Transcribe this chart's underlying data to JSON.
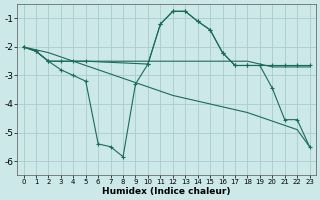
{
  "xlabel": "Humidex (Indice chaleur)",
  "background_color": "#cce8e8",
  "grid_color": "#aacccc",
  "line_color": "#1a6b5a",
  "xlim": [
    -0.5,
    23.5
  ],
  "ylim": [
    -6.5,
    -0.5
  ],
  "yticks": [
    -6,
    -5,
    -4,
    -3,
    -2,
    -1
  ],
  "xticks": [
    0,
    1,
    2,
    3,
    4,
    5,
    6,
    7,
    8,
    9,
    10,
    11,
    12,
    13,
    14,
    15,
    16,
    17,
    18,
    19,
    20,
    21,
    22,
    23
  ],
  "line1_no_marker": {
    "x": [
      0,
      1,
      2,
      3,
      4,
      5,
      6,
      7,
      8,
      9,
      10,
      11,
      12,
      13,
      14,
      15,
      16,
      17,
      18,
      19,
      20,
      21,
      22,
      23
    ],
    "y": [
      -2.0,
      -2.1,
      -2.2,
      -2.35,
      -2.5,
      -2.65,
      -2.8,
      -2.95,
      -3.1,
      -3.25,
      -3.4,
      -3.55,
      -3.7,
      -3.8,
      -3.9,
      -4.0,
      -4.1,
      -4.2,
      -4.3,
      -4.45,
      -4.6,
      -4.75,
      -4.9,
      -5.5
    ]
  },
  "line2_no_marker": {
    "x": [
      0,
      1,
      2,
      3,
      4,
      5,
      6,
      7,
      8,
      9,
      10,
      11,
      12,
      13,
      14,
      15,
      16,
      17,
      18,
      19,
      20,
      21,
      22,
      23
    ],
    "y": [
      -2.0,
      -2.15,
      -2.5,
      -2.5,
      -2.5,
      -2.5,
      -2.5,
      -2.5,
      -2.5,
      -2.5,
      -2.5,
      -2.5,
      -2.5,
      -2.5,
      -2.5,
      -2.5,
      -2.5,
      -2.5,
      -2.5,
      -2.6,
      -2.7,
      -2.7,
      -2.7,
      -2.7
    ]
  },
  "line3_with_marker": {
    "x": [
      0,
      1,
      2,
      3,
      4,
      5,
      6,
      7,
      8,
      9,
      10,
      11,
      12,
      13,
      14,
      15,
      16,
      17,
      18,
      19,
      20,
      21,
      22,
      23
    ],
    "y": [
      -2.0,
      -2.15,
      -2.5,
      -2.8,
      -3.0,
      -3.2,
      -5.4,
      -5.5,
      -5.85,
      -3.3,
      -2.6,
      -1.2,
      -0.75,
      -0.75,
      -1.1,
      -1.4,
      -2.2,
      -2.65,
      -2.65,
      -2.65,
      -3.45,
      -4.55,
      -4.55,
      -5.5
    ]
  },
  "line4_with_marker": {
    "x": [
      0,
      1,
      2,
      3,
      4,
      5,
      10,
      11,
      12,
      13,
      14,
      15,
      16,
      17,
      18,
      19,
      20,
      21,
      22,
      23
    ],
    "y": [
      -2.0,
      -2.15,
      -2.5,
      -2.5,
      -2.5,
      -2.5,
      -2.6,
      -1.2,
      -0.75,
      -0.75,
      -1.1,
      -1.4,
      -2.2,
      -2.65,
      -2.65,
      -2.65,
      -2.65,
      -2.65,
      -2.65,
      -2.65
    ]
  }
}
